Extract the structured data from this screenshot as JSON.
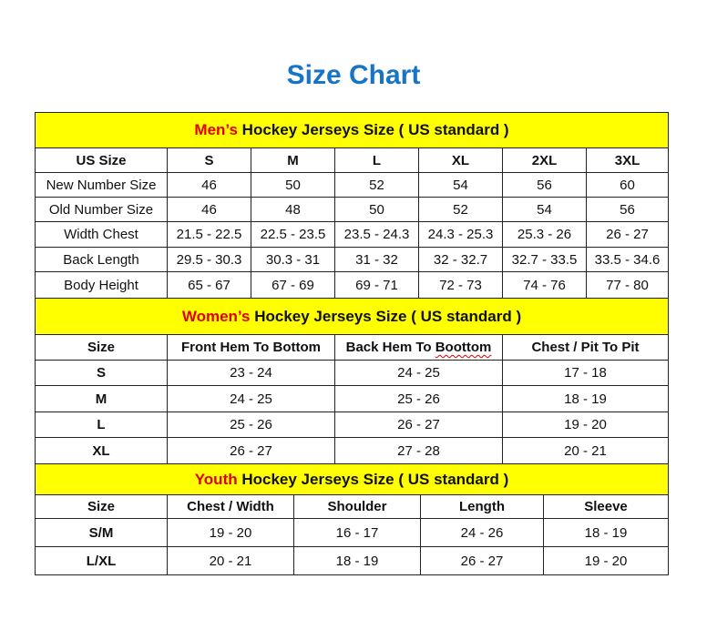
{
  "title": "Size Chart",
  "colors": {
    "title": "#1874c7",
    "header_bg": "#ffff00",
    "highlight": "#e00000"
  },
  "men": {
    "heading_highlight": "Men’s",
    "heading_rest": " Hockey Jerseys Size ( US standard )",
    "columns": [
      "US Size",
      "S",
      "M",
      "L",
      "XL",
      "2XL",
      "3XL"
    ],
    "rows": [
      [
        "New Number Size",
        "46",
        "50",
        "52",
        "54",
        "56",
        "60"
      ],
      [
        "Old Number Size",
        "46",
        "48",
        "50",
        "52",
        "54",
        "56"
      ],
      [
        "Width Chest",
        "21.5 - 22.5",
        "22.5 - 23.5",
        "23.5 - 24.3",
        "24.3 - 25.3",
        "25.3 - 26",
        "26 - 27"
      ],
      [
        "Back Length",
        "29.5 - 30.3",
        "30.3 - 31",
        "31 - 32",
        "32 - 32.7",
        "32.7 - 33.5",
        "33.5 - 34.6"
      ],
      [
        "Body Height",
        "65 - 67",
        "67 - 69",
        "69 - 71",
        "72 - 73",
        "74 - 76",
        "77 - 80"
      ]
    ]
  },
  "women": {
    "heading_highlight": "Women’s",
    "heading_rest": " Hockey Jerseys Size ( US standard )",
    "columns": [
      "Size",
      "Front Hem To Bottom",
      "Back Hem To Boottom",
      "Chest / Pit To Pit"
    ],
    "rows": [
      [
        "S",
        "23 - 24",
        "24 - 25",
        "17 - 18"
      ],
      [
        "M",
        "24 - 25",
        "25 - 26",
        "18 - 19"
      ],
      [
        "L",
        "25 - 26",
        "26 - 27",
        "19 - 20"
      ],
      [
        "XL",
        "26 - 27",
        "27 - 28",
        "20 - 21"
      ]
    ]
  },
  "youth": {
    "heading_highlight": "Youth",
    "heading_rest": " Hockey Jerseys Size ( US standard )",
    "columns": [
      "Size",
      "Chest / Width",
      "Shoulder",
      "Length",
      "Sleeve"
    ],
    "rows": [
      [
        "S/M",
        "19 - 20",
        "16 - 17",
        "24 - 26",
        "18 - 19"
      ],
      [
        "L/XL",
        "20 - 21",
        "18 - 19",
        "26 - 27",
        "19 - 20"
      ]
    ]
  }
}
